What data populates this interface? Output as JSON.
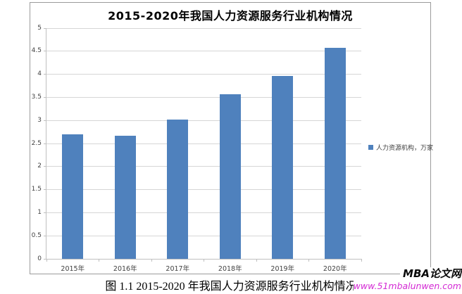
{
  "chart": {
    "title": "2015-2020年我国人力资源服务行业机构情况",
    "legend": {
      "label": "人力资源机构，万家"
    }
  },
  "chart_data": {
    "type": "bar",
    "title": "2015-2020年我国人力资源服务行业机构情况",
    "categories": [
      "2015年",
      "2016年",
      "2017年",
      "2018年",
      "2019年",
      "2020年"
    ],
    "values": [
      2.7,
      2.67,
      3.02,
      3.57,
      3.96,
      4.58
    ],
    "series_name": "人力资源机构，万家",
    "xlabel": "",
    "ylabel": "",
    "ylim": [
      0,
      5
    ],
    "ytick_step": 0.5,
    "grid": true,
    "legend_position": "right",
    "bar_color": "#4f81bd"
  },
  "caption": "图 1.1 2015-2020 年我国人力资源服务行业机构情况",
  "watermark": {
    "site_name": "MBA论文网",
    "url": "www.51mbalunwen.com",
    "url_color": "#d42ad4"
  }
}
